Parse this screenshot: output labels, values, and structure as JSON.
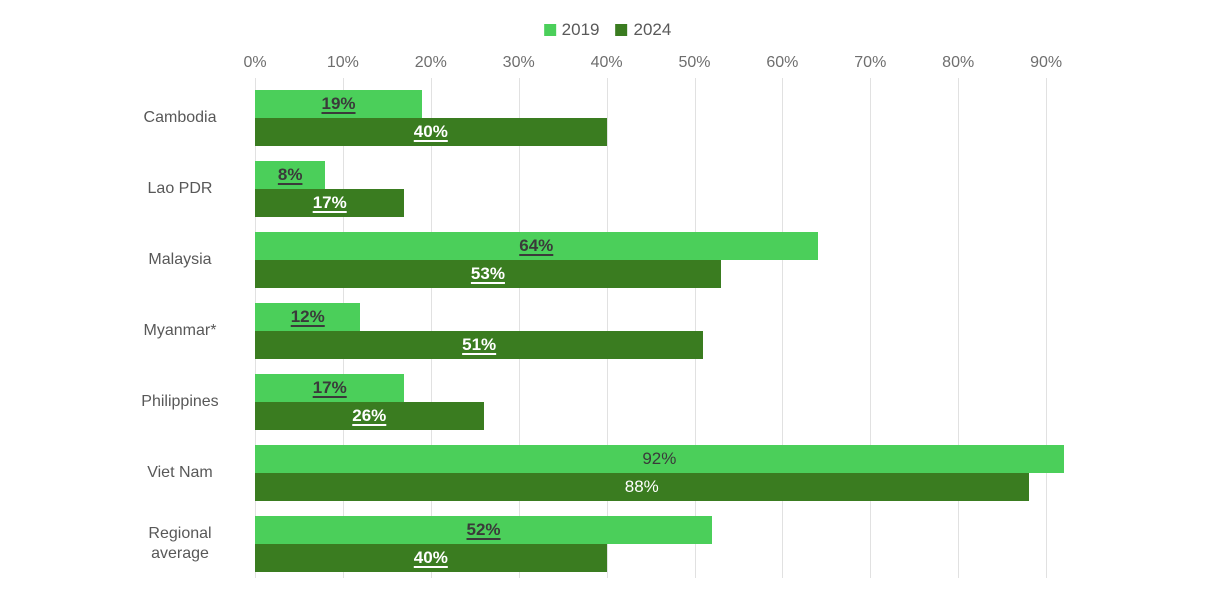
{
  "chart_data": {
    "type": "bar",
    "orientation": "horizontal",
    "title": "",
    "xlabel": "",
    "ylabel": "",
    "categories": [
      "Cambodia",
      "Lao PDR",
      "Malaysia",
      "Myanmar*",
      "Philippines",
      "Viet Nam",
      "Regional average"
    ],
    "series": [
      {
        "name": "2019",
        "color": "#4bcf5a",
        "label_color": "#3a3a3a",
        "values": [
          19,
          8,
          64,
          12,
          17,
          92,
          52
        ]
      },
      {
        "name": "2024",
        "color": "#3a7c20",
        "label_color": "#ffffff",
        "values": [
          40,
          17,
          53,
          51,
          26,
          88,
          40
        ]
      }
    ],
    "data_labels": [
      [
        "19%",
        "8%",
        "64%",
        "12%",
        "17%",
        "92%",
        "52%"
      ],
      [
        "40%",
        "17%",
        "53%",
        "51%",
        "26%",
        "88%",
        "40%"
      ]
    ],
    "label_emphasis_by_category": [
      true,
      true,
      true,
      true,
      true,
      false,
      true
    ],
    "axis": {
      "ticks": [
        "0%",
        "10%",
        "20%",
        "30%",
        "40%",
        "50%",
        "60%",
        "70%",
        "80%",
        "90%"
      ],
      "tick_values": [
        0,
        10,
        20,
        30,
        40,
        50,
        60,
        70,
        80,
        90
      ],
      "min": 0,
      "max": 96,
      "grid": true,
      "gridline_color": "#e1e1e1"
    },
    "legend": {
      "position": "top",
      "entries": [
        "2019",
        "2024"
      ]
    }
  }
}
